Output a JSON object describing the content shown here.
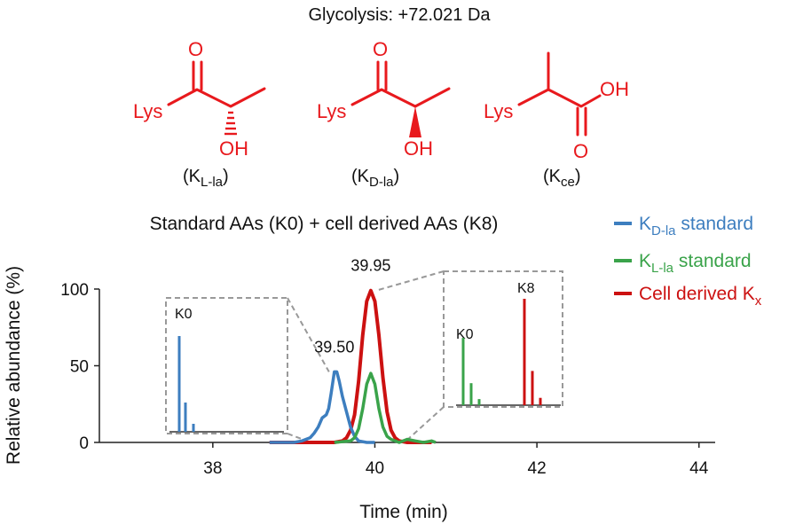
{
  "header": {
    "title": "Glycolysis: +72.021 Da"
  },
  "structures": [
    {
      "lys": "Lys",
      "o": "O",
      "oh": "OH",
      "label_main": "K",
      "label_sub": "L-la",
      "open": "(",
      "close": ")"
    },
    {
      "lys": "Lys",
      "o": "O",
      "oh": "OH",
      "label_main": "K",
      "label_sub": "D-la",
      "open": "(",
      "close": ")"
    },
    {
      "lys": "Lys",
      "o": "O",
      "oh": "OH",
      "label_main": "K",
      "label_sub": "ce",
      "open": "(",
      "close": ")"
    }
  ],
  "colors": {
    "structure": "#e8191d",
    "d_la": "#3d7ebf",
    "l_la": "#3aa34a",
    "cell": "#cc1111",
    "inset_border": "#999999"
  },
  "chart_data": {
    "type": "line",
    "title": "Standard AAs (K0) + cell derived AAs (K8)",
    "xlabel": "Time (min)",
    "ylabel": "Relative abundance (%)",
    "xlim": [
      36.6,
      44.2
    ],
    "ylim": [
      0,
      100
    ],
    "xticks": [
      "38",
      "40",
      "42",
      "44"
    ],
    "yticks": [
      "0",
      "50",
      "100"
    ],
    "legend_position": "top-right",
    "legend": [
      {
        "main": "K",
        "sub": "D-la",
        "rest": " standard"
      },
      {
        "main": "K",
        "sub": "L-la",
        "rest": " standard"
      },
      {
        "main": "Cell derived K",
        "sub": "x",
        "rest": ""
      }
    ],
    "series": [
      {
        "name": "KD-la standard",
        "x": [
          38.7,
          39.0,
          39.1,
          39.2,
          39.25,
          39.3,
          39.35,
          39.4,
          39.43,
          39.46,
          39.5,
          39.53,
          39.56,
          39.6,
          39.65,
          39.7,
          39.75,
          39.8,
          39.9,
          40.0
        ],
        "y": [
          0,
          0,
          1,
          3,
          6,
          10,
          16,
          18,
          22,
          32,
          46,
          46,
          40,
          30,
          20,
          10,
          4,
          1,
          0,
          0
        ]
      },
      {
        "name": "KL-la standard",
        "x": [
          39.5,
          39.7,
          39.75,
          39.8,
          39.85,
          39.9,
          39.95,
          40.0,
          40.05,
          40.1,
          40.15,
          40.2,
          40.25,
          40.3,
          40.4,
          40.5,
          40.6,
          40.7,
          40.75
        ],
        "y": [
          0,
          1,
          3,
          9,
          22,
          38,
          45,
          38,
          22,
          10,
          4,
          2,
          1,
          0,
          2,
          1,
          0,
          1,
          0
        ]
      },
      {
        "name": "Cell derived Kx",
        "x": [
          38.7,
          39.5,
          39.6,
          39.65,
          39.7,
          39.75,
          39.8,
          39.85,
          39.9,
          39.95,
          40.0,
          40.05,
          40.1,
          40.15,
          40.2,
          40.25,
          40.3,
          40.4,
          40.7
        ],
        "y": [
          0,
          0,
          1,
          3,
          8,
          18,
          40,
          70,
          92,
          99,
          92,
          70,
          42,
          20,
          8,
          3,
          1,
          0,
          0
        ]
      }
    ],
    "annotations": [
      {
        "text": "39.50",
        "x": 39.5,
        "y": 46
      },
      {
        "text": "39.95",
        "x": 39.95,
        "y": 99
      }
    ],
    "insets": [
      {
        "label": "K0",
        "color": "#3d7ebf",
        "bars": [
          0.72,
          0.22,
          0.06
        ],
        "anchor_x": 39.5
      },
      {
        "labels": [
          "K0",
          "K8"
        ],
        "bars_k0": {
          "color": "#3aa34a",
          "values": [
            0.55,
            0.18,
            0.05
          ]
        },
        "bars_k8": {
          "color": "#cc1111",
          "values": [
            0.87,
            0.28,
            0.06
          ]
        },
        "anchor_x": 39.95
      }
    ]
  }
}
